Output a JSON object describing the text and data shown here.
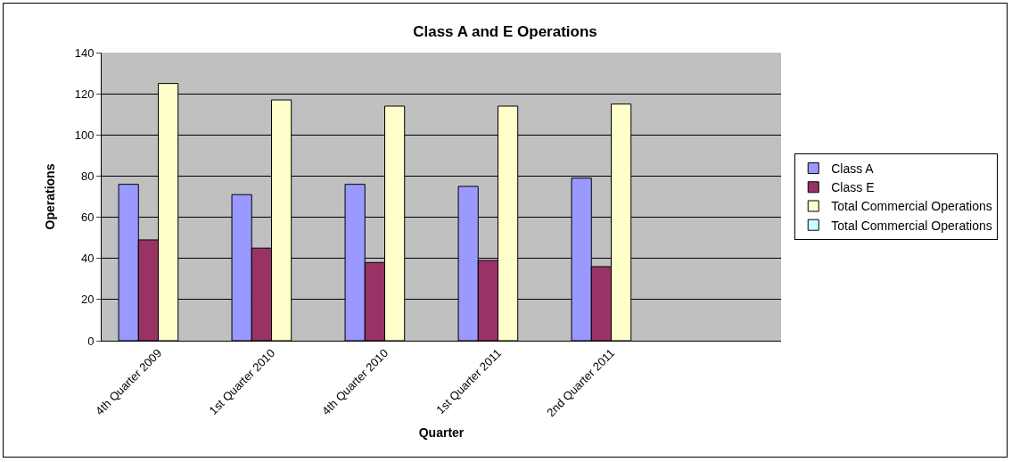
{
  "chart_data": {
    "type": "bar",
    "title": "Class A and E Operations",
    "xlabel": "Quarter",
    "ylabel": "Operations",
    "categories": [
      "4th Quarter 2009",
      "1st Quarter 2010",
      "4th Quarter 2010",
      "1st Quarter 2011",
      "2nd Quarter 2011",
      null
    ],
    "series": [
      {
        "name": "Class A",
        "color": "#9999ff",
        "values": [
          76,
          71,
          76,
          75,
          79,
          null
        ]
      },
      {
        "name": "Class E",
        "color": "#993366",
        "values": [
          49,
          45,
          38,
          39,
          36,
          null
        ]
      },
      {
        "name": "Total Commercial Operations",
        "color": "#ffffcc",
        "values": [
          125,
          117,
          114,
          114,
          115,
          null
        ]
      },
      {
        "name": "Total Commercial Operations",
        "color": "#ccffff",
        "values": [
          null,
          null,
          null,
          null,
          null,
          null
        ]
      }
    ],
    "ylim": [
      0,
      140
    ],
    "yticks": [
      0,
      20,
      40,
      60,
      80,
      100,
      120,
      140
    ],
    "grid": "y",
    "legend": "right"
  }
}
